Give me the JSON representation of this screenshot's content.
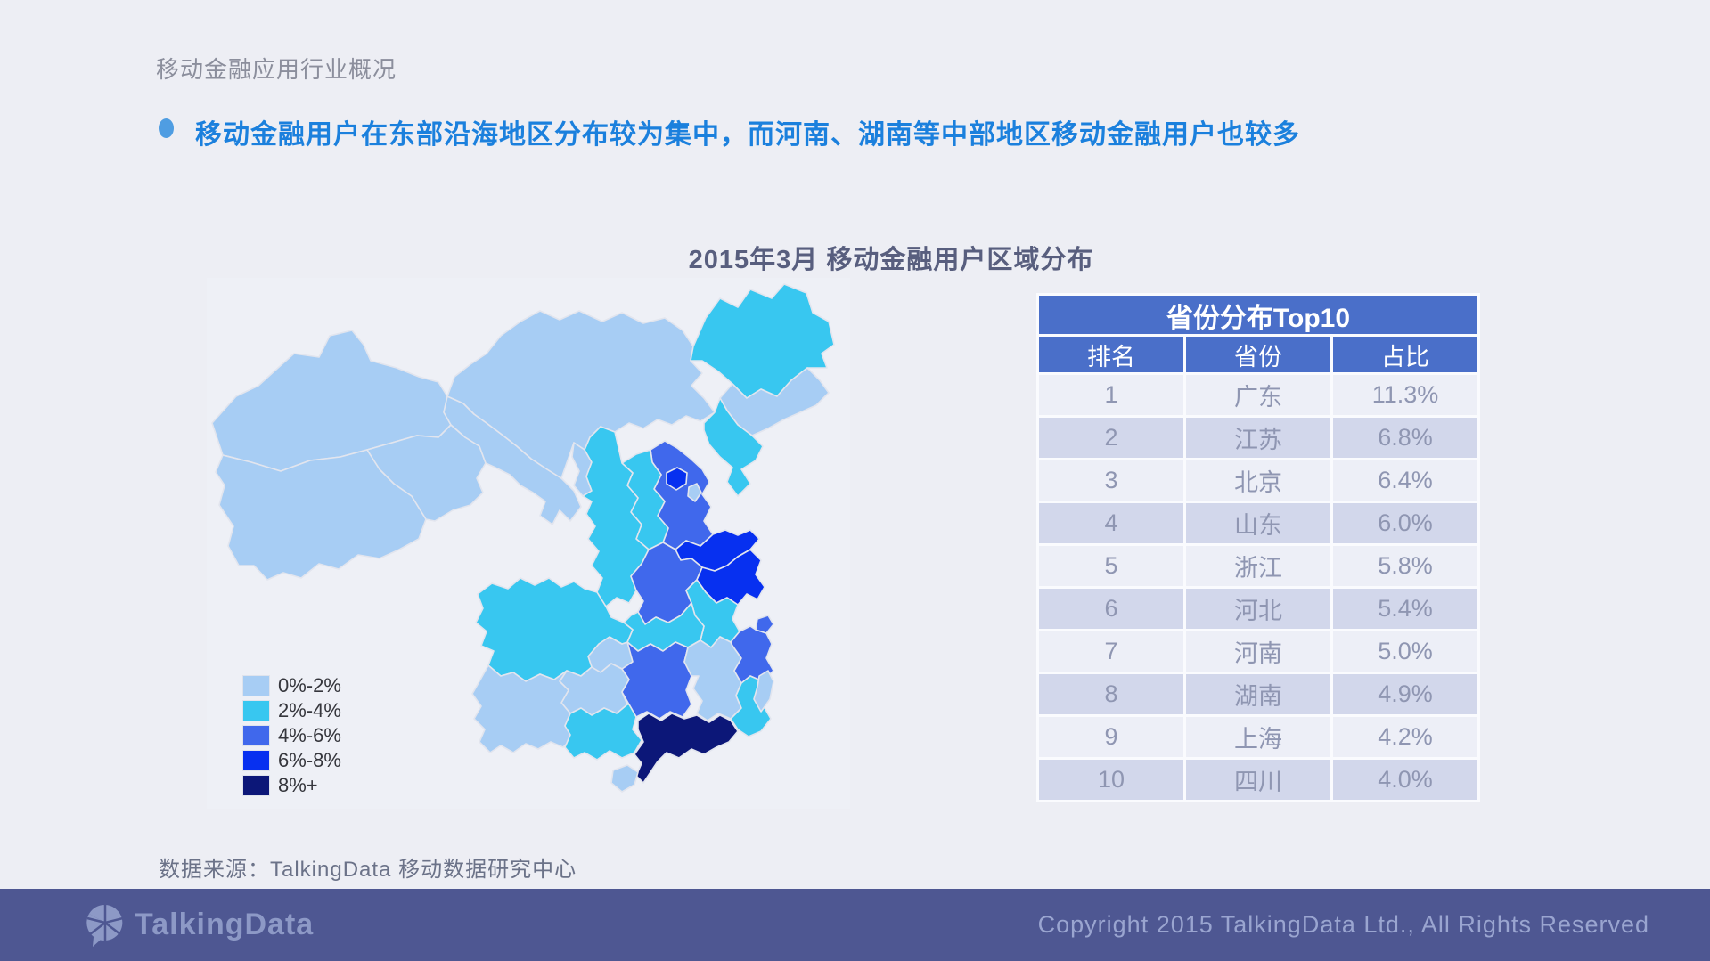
{
  "page": {
    "title": "移动金融应用行业概况",
    "bullet": "移动金融用户在东部沿海地区分布较为集中，而河南、湖南等中部地区移动金融用户也较多",
    "source": "数据来源：TalkingData 移动数据研究中心"
  },
  "footer": {
    "logo_text": "TalkingData",
    "copyright": "Copyright 2015 TalkingData Ltd., All Rights Reserved"
  },
  "colors": {
    "page_background": "#edeef4",
    "bullet_text": "#1b80dd",
    "table_header_blue": "#4a6fc9",
    "table_row_light": "#edeff7",
    "table_row_dark": "#d2d7eb",
    "footer_background": "#4e5792"
  },
  "chart_data": [
    {
      "type": "choropleth-map",
      "title": "2015年3月 移动金融用户区域分布",
      "legend_position": "bottom-left",
      "legend": [
        {
          "label": "0%-2%",
          "color": "#a7cdf4"
        },
        {
          "label": "2%-4%",
          "color": "#38c7f0"
        },
        {
          "label": "4%-6%",
          "color": "#4068ec"
        },
        {
          "label": "6%-8%",
          "color": "#0730f0"
        },
        {
          "label": "8%+",
          "color": "#0c1778"
        }
      ],
      "regions": [
        {
          "id": "xinjiang",
          "name": "新疆",
          "bucket": "0%-2%"
        },
        {
          "id": "xizang",
          "name": "西藏",
          "bucket": "0%-2%"
        },
        {
          "id": "qinghai",
          "name": "青海",
          "bucket": "0%-2%"
        },
        {
          "id": "gansu",
          "name": "甘肃",
          "bucket": "0%-2%"
        },
        {
          "id": "neimenggu",
          "name": "内蒙古",
          "bucket": "0%-2%"
        },
        {
          "id": "ningxia",
          "name": "宁夏",
          "bucket": "0%-2%"
        },
        {
          "id": "heilongjiang",
          "name": "黑龙江",
          "bucket": "2%-4%"
        },
        {
          "id": "jilin",
          "name": "吉林",
          "bucket": "0%-2%"
        },
        {
          "id": "liaoning",
          "name": "辽宁",
          "bucket": "2%-4%"
        },
        {
          "id": "hebei",
          "name": "河北",
          "bucket": "4%-6%"
        },
        {
          "id": "shanxi",
          "name": "山西",
          "bucket": "2%-4%"
        },
        {
          "id": "shaanxi",
          "name": "陕西",
          "bucket": "2%-4%"
        },
        {
          "id": "shandong",
          "name": "山东",
          "bucket": "6%-8%"
        },
        {
          "id": "henan",
          "name": "河南",
          "bucket": "4%-6%"
        },
        {
          "id": "jiangsu",
          "name": "江苏",
          "bucket": "6%-8%"
        },
        {
          "id": "anhui",
          "name": "安徽",
          "bucket": "2%-4%"
        },
        {
          "id": "hubei",
          "name": "湖北",
          "bucket": "2%-4%"
        },
        {
          "id": "chongqing",
          "name": "重庆",
          "bucket": "0%-2%"
        },
        {
          "id": "sichuan",
          "name": "四川",
          "bucket": "2%-4%"
        },
        {
          "id": "guizhou",
          "name": "贵州",
          "bucket": "0%-2%"
        },
        {
          "id": "hunan",
          "name": "湖南",
          "bucket": "4%-6%"
        },
        {
          "id": "jiangxi",
          "name": "江西",
          "bucket": "0%-2%"
        },
        {
          "id": "zhejiang",
          "name": "浙江",
          "bucket": "4%-6%"
        },
        {
          "id": "shanghai",
          "name": "上海",
          "bucket": "4%-6%"
        },
        {
          "id": "fujian",
          "name": "福建",
          "bucket": "2%-4%"
        },
        {
          "id": "yunnan",
          "name": "云南",
          "bucket": "0%-2%"
        },
        {
          "id": "guangxi",
          "name": "广西",
          "bucket": "2%-4%"
        },
        {
          "id": "guangdong",
          "name": "广东",
          "bucket": "8%+"
        },
        {
          "id": "hainan",
          "name": "海南",
          "bucket": "0%-2%"
        },
        {
          "id": "taiwan",
          "name": "台湾",
          "bucket": "0%-2%"
        },
        {
          "id": "beijing",
          "name": "北京",
          "bucket": "6%-8%"
        },
        {
          "id": "tianjin",
          "name": "天津",
          "bucket": "0%-2%"
        }
      ]
    },
    {
      "type": "table",
      "title": "省份分布Top10",
      "columns": [
        "排名",
        "省份",
        "占比"
      ],
      "rows": [
        [
          "1",
          "广东",
          "11.3%"
        ],
        [
          "2",
          "江苏",
          "6.8%"
        ],
        [
          "3",
          "北京",
          "6.4%"
        ],
        [
          "4",
          "山东",
          "6.0%"
        ],
        [
          "5",
          "浙江",
          "5.8%"
        ],
        [
          "6",
          "河北",
          "5.4%"
        ],
        [
          "7",
          "河南",
          "5.0%"
        ],
        [
          "8",
          "湖南",
          "4.9%"
        ],
        [
          "9",
          "上海",
          "4.2%"
        ],
        [
          "10",
          "四川",
          "4.0%"
        ]
      ]
    }
  ]
}
